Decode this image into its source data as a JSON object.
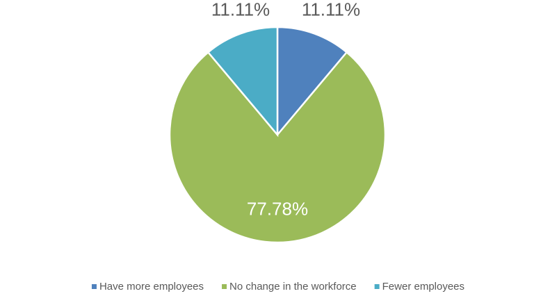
{
  "chart_data": {
    "type": "pie",
    "categories": [
      "Have more employees",
      "No change in the workforce",
      "Fewer employees"
    ],
    "values": [
      11.11,
      77.78,
      11.11
    ],
    "value_labels": [
      "11.11%",
      "77.78%",
      "11.11%"
    ],
    "colors": [
      "#4f81bd",
      "#9bbb59",
      "#4bacc6"
    ],
    "legend": "bottom"
  }
}
